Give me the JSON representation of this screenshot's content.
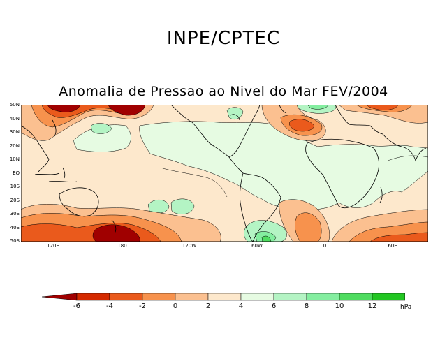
{
  "header": {
    "organization": "INPE/CPTEC"
  },
  "map": {
    "title": "Anomalia de Pressao ao Nivel do Mar FEV/2004",
    "lat_labels": [
      "50N",
      "40N",
      "30N",
      "20N",
      "10N",
      "EQ",
      "10S",
      "20S",
      "30S",
      "40S",
      "50S"
    ],
    "lon_labels": [
      "120E",
      "180",
      "120W",
      "60W",
      "0",
      "60E"
    ]
  },
  "legend": {
    "labels": [
      "-6",
      "-4",
      "-2",
      "0",
      "2",
      "4",
      "6",
      "8",
      "10",
      "12"
    ],
    "unit": "hPa",
    "colors": [
      "#a00000",
      "#d42a00",
      "#ea5a1c",
      "#f7924d",
      "#fbc090",
      "#fde8cc",
      "#e6fbe2",
      "#b4f4c4",
      "#84eea0",
      "#4fdc60",
      "#22c622",
      "#10a610",
      "#0a840a"
    ]
  }
}
